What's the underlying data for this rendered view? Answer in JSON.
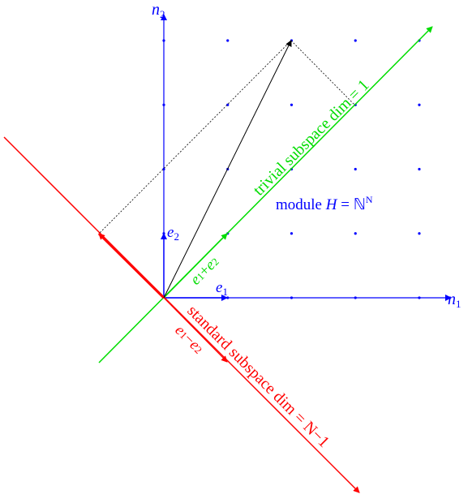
{
  "axes": {
    "x": {
      "var": "n",
      "sub": "1"
    },
    "y": {
      "var": "n",
      "sub": "2"
    }
  },
  "basis": {
    "e1": {
      "var": "e",
      "sub": "1"
    },
    "e2": {
      "var": "e",
      "sub": "2"
    }
  },
  "trivial": {
    "label": "trivial subspace dim = 1",
    "vector": {
      "a": "e",
      "a_sub": "1",
      "op": "+",
      "b": "e",
      "b_sub": "2"
    }
  },
  "standard": {
    "label": "standard subspace dim = N−1",
    "vector": {
      "a": "e",
      "a_sub": "1",
      "op": "−",
      "b": "e",
      "b_sub": "2"
    }
  },
  "module": {
    "prefix": "module",
    "var": "H",
    "eq": " = ℕ",
    "sup": "N"
  }
}
